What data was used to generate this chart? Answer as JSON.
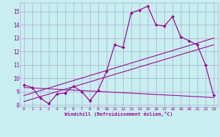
{
  "title": "",
  "xlabel": "Windchill (Refroidissement éolien,°C)",
  "bg_color": "#c8eef0",
  "grid_color": "#aaaacc",
  "line_color": "#990099",
  "xlim": [
    -0.5,
    23.5
  ],
  "ylim": [
    7.85,
    15.65
  ],
  "xticks": [
    0,
    1,
    2,
    3,
    4,
    5,
    6,
    7,
    8,
    9,
    10,
    11,
    12,
    13,
    14,
    15,
    16,
    17,
    18,
    19,
    20,
    21,
    22,
    23
  ],
  "yticks": [
    8,
    9,
    10,
    11,
    12,
    13,
    14,
    15
  ],
  "main_x": [
    0,
    1,
    2,
    3,
    4,
    5,
    6,
    7,
    8,
    9,
    10,
    11,
    12,
    13,
    14,
    15,
    16,
    17,
    18,
    19,
    20,
    21,
    22,
    23
  ],
  "main_y": [
    9.5,
    9.3,
    8.5,
    8.1,
    8.8,
    8.9,
    9.4,
    9.0,
    8.3,
    9.1,
    10.5,
    12.5,
    12.3,
    14.9,
    15.1,
    15.4,
    14.0,
    13.9,
    14.6,
    13.1,
    12.8,
    12.5,
    11.0,
    8.7
  ],
  "line2_x": [
    0,
    23
  ],
  "line2_y": [
    8.25,
    12.5
  ],
  "line3_x": [
    0,
    23
  ],
  "line3_y": [
    8.7,
    13.0
  ],
  "line4_x": [
    0,
    23
  ],
  "line4_y": [
    9.3,
    8.55
  ]
}
